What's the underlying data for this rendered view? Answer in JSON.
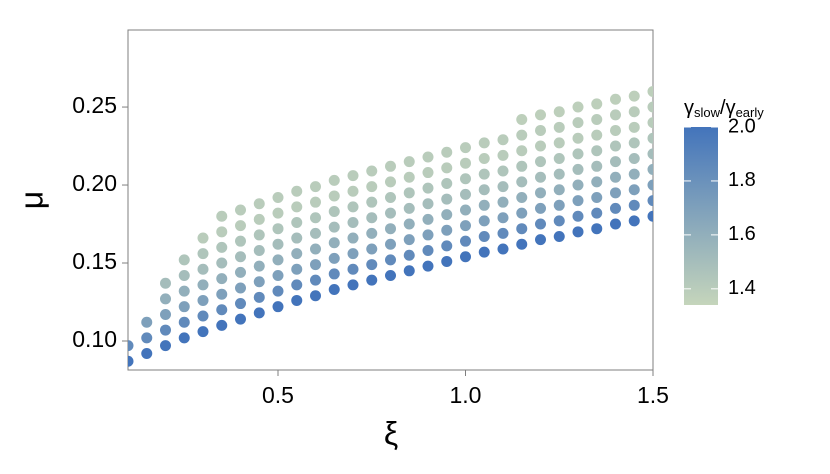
{
  "chart_data": {
    "type": "scatter",
    "xlabel": "ξ",
    "ylabel": "μ",
    "xlim": [
      0.1,
      1.5
    ],
    "ylim": [
      0.0814,
      0.2994
    ],
    "xticks": [
      0.5,
      {
        "value": 1,
        "label": "1.0"
      },
      1.5
    ],
    "yticks": [
      {
        "value": 0.1,
        "label": "0.10"
      },
      {
        "value": 0.15,
        "label": "0.15"
      },
      {
        "value": 0.2,
        "label": "0.20"
      },
      {
        "value": 0.25,
        "label": "0.25"
      }
    ],
    "colorbar": {
      "title": {
        "numerator": "γ",
        "numerator_sub": "slow",
        "sep": "/",
        "denominator": "γ",
        "denominator_sub": "early"
      },
      "clim": [
        1.34,
        2.0
      ],
      "ticks": [
        1.4,
        1.6,
        1.8,
        {
          "value": 2,
          "label": "2.0"
        }
      ],
      "low_color": "#c5d5bb",
      "high_color": "#4374bb"
    },
    "x": [
      0.1,
      0.1,
      0.15,
      0.15,
      0.15,
      0.2,
      0.2,
      0.2,
      0.2,
      0.2,
      0.25,
      0.25,
      0.25,
      0.25,
      0.25,
      0.25,
      0.3,
      0.3,
      0.3,
      0.3,
      0.3,
      0.3,
      0.3,
      0.35,
      0.35,
      0.35,
      0.35,
      0.35,
      0.35,
      0.35,
      0.35,
      0.4,
      0.4,
      0.4,
      0.4,
      0.4,
      0.4,
      0.4,
      0.4,
      0.45,
      0.45,
      0.45,
      0.45,
      0.45,
      0.45,
      0.45,
      0.45,
      0.5,
      0.5,
      0.5,
      0.5,
      0.5,
      0.5,
      0.5,
      0.5,
      0.55,
      0.55,
      0.55,
      0.55,
      0.55,
      0.55,
      0.55,
      0.55,
      0.6,
      0.6,
      0.6,
      0.6,
      0.6,
      0.6,
      0.6,
      0.6,
      0.65,
      0.65,
      0.65,
      0.65,
      0.65,
      0.65,
      0.65,
      0.65,
      0.7,
      0.7,
      0.7,
      0.7,
      0.7,
      0.7,
      0.7,
      0.7,
      0.75,
      0.75,
      0.75,
      0.75,
      0.75,
      0.75,
      0.75,
      0.75,
      0.8,
      0.8,
      0.8,
      0.8,
      0.8,
      0.8,
      0.8,
      0.8,
      0.85,
      0.85,
      0.85,
      0.85,
      0.85,
      0.85,
      0.85,
      0.85,
      0.9,
      0.9,
      0.9,
      0.9,
      0.9,
      0.9,
      0.9,
      0.9,
      0.95,
      0.95,
      0.95,
      0.95,
      0.95,
      0.95,
      0.95,
      0.95,
      1.0,
      1.0,
      1.0,
      1.0,
      1.0,
      1.0,
      1.0,
      1.0,
      1.05,
      1.05,
      1.05,
      1.05,
      1.05,
      1.05,
      1.05,
      1.05,
      1.1,
      1.1,
      1.1,
      1.1,
      1.1,
      1.1,
      1.1,
      1.1,
      1.15,
      1.15,
      1.15,
      1.15,
      1.15,
      1.15,
      1.15,
      1.15,
      1.15,
      1.2,
      1.2,
      1.2,
      1.2,
      1.2,
      1.2,
      1.2,
      1.2,
      1.2,
      1.25,
      1.25,
      1.25,
      1.25,
      1.25,
      1.25,
      1.25,
      1.25,
      1.25,
      1.3,
      1.3,
      1.3,
      1.3,
      1.3,
      1.3,
      1.3,
      1.3,
      1.3,
      1.35,
      1.35,
      1.35,
      1.35,
      1.35,
      1.35,
      1.35,
      1.35,
      1.35,
      1.4,
      1.4,
      1.4,
      1.4,
      1.4,
      1.4,
      1.4,
      1.4,
      1.4,
      1.45,
      1.45,
      1.45,
      1.45,
      1.45,
      1.45,
      1.45,
      1.45,
      1.45,
      1.5,
      1.5,
      1.5,
      1.5,
      1.5,
      1.5,
      1.5,
      1.5,
      1.5
    ],
    "y": [
      0.087,
      0.097,
      0.092,
      0.102,
      0.112,
      0.097,
      0.107,
      0.117,
      0.127,
      0.137,
      0.102,
      0.112,
      0.122,
      0.132,
      0.142,
      0.152,
      0.106,
      0.116,
      0.126,
      0.136,
      0.146,
      0.156,
      0.166,
      0.11,
      0.12,
      0.13,
      0.14,
      0.15,
      0.16,
      0.17,
      0.18,
      0.114,
      0.124,
      0.134,
      0.144,
      0.154,
      0.164,
      0.174,
      0.184,
      0.118,
      0.128,
      0.138,
      0.148,
      0.158,
      0.168,
      0.178,
      0.188,
      0.122,
      0.132,
      0.142,
      0.152,
      0.162,
      0.172,
      0.182,
      0.192,
      0.126,
      0.136,
      0.146,
      0.156,
      0.166,
      0.176,
      0.186,
      0.196,
      0.129,
      0.139,
      0.149,
      0.159,
      0.169,
      0.179,
      0.189,
      0.199,
      0.133,
      0.143,
      0.153,
      0.163,
      0.173,
      0.183,
      0.193,
      0.203,
      0.136,
      0.146,
      0.156,
      0.166,
      0.176,
      0.186,
      0.196,
      0.206,
      0.139,
      0.149,
      0.159,
      0.169,
      0.179,
      0.189,
      0.199,
      0.209,
      0.142,
      0.152,
      0.162,
      0.172,
      0.182,
      0.192,
      0.202,
      0.212,
      0.145,
      0.155,
      0.165,
      0.175,
      0.185,
      0.195,
      0.205,
      0.215,
      0.148,
      0.158,
      0.168,
      0.178,
      0.188,
      0.198,
      0.208,
      0.218,
      0.151,
      0.161,
      0.171,
      0.181,
      0.191,
      0.201,
      0.211,
      0.221,
      0.154,
      0.164,
      0.174,
      0.184,
      0.194,
      0.204,
      0.214,
      0.224,
      0.157,
      0.167,
      0.177,
      0.187,
      0.197,
      0.207,
      0.217,
      0.227,
      0.159,
      0.169,
      0.179,
      0.189,
      0.199,
      0.209,
      0.219,
      0.229,
      0.162,
      0.172,
      0.182,
      0.192,
      0.202,
      0.212,
      0.222,
      0.232,
      0.242,
      0.165,
      0.175,
      0.185,
      0.195,
      0.205,
      0.215,
      0.225,
      0.235,
      0.245,
      0.167,
      0.177,
      0.187,
      0.197,
      0.207,
      0.217,
      0.227,
      0.237,
      0.247,
      0.17,
      0.18,
      0.19,
      0.2,
      0.21,
      0.22,
      0.23,
      0.24,
      0.25,
      0.172,
      0.182,
      0.192,
      0.202,
      0.212,
      0.222,
      0.232,
      0.242,
      0.252,
      0.175,
      0.185,
      0.195,
      0.205,
      0.215,
      0.225,
      0.235,
      0.245,
      0.255,
      0.177,
      0.187,
      0.197,
      0.207,
      0.217,
      0.227,
      0.237,
      0.247,
      0.257,
      0.18,
      0.19,
      0.2,
      0.21,
      0.22,
      0.23,
      0.24,
      0.25,
      0.26
    ],
    "color_values": [
      2.0,
      1.85,
      2.0,
      1.85,
      1.7,
      2.0,
      1.85,
      1.7,
      1.6,
      1.5,
      2.0,
      1.85,
      1.7,
      1.6,
      1.5,
      1.45,
      2.0,
      1.85,
      1.7,
      1.6,
      1.5,
      1.45,
      1.4,
      2.0,
      1.85,
      1.7,
      1.6,
      1.5,
      1.45,
      1.4,
      1.4,
      2.0,
      1.85,
      1.7,
      1.6,
      1.5,
      1.45,
      1.4,
      1.4,
      2.0,
      1.85,
      1.7,
      1.6,
      1.5,
      1.45,
      1.4,
      1.4,
      2.0,
      1.85,
      1.7,
      1.6,
      1.5,
      1.45,
      1.4,
      1.4,
      2.0,
      1.85,
      1.7,
      1.6,
      1.5,
      1.45,
      1.4,
      1.4,
      2.0,
      1.85,
      1.7,
      1.6,
      1.5,
      1.45,
      1.4,
      1.4,
      2.0,
      1.85,
      1.7,
      1.6,
      1.5,
      1.45,
      1.4,
      1.4,
      2.0,
      1.85,
      1.7,
      1.6,
      1.5,
      1.45,
      1.4,
      1.4,
      2.0,
      1.85,
      1.7,
      1.6,
      1.5,
      1.45,
      1.4,
      1.4,
      2.0,
      1.85,
      1.7,
      1.6,
      1.5,
      1.45,
      1.4,
      1.4,
      2.0,
      1.85,
      1.7,
      1.6,
      1.5,
      1.45,
      1.4,
      1.4,
      2.0,
      1.85,
      1.7,
      1.6,
      1.5,
      1.45,
      1.4,
      1.4,
      2.0,
      1.85,
      1.7,
      1.6,
      1.5,
      1.45,
      1.4,
      1.4,
      2.0,
      1.85,
      1.7,
      1.6,
      1.5,
      1.45,
      1.4,
      1.4,
      2.0,
      1.85,
      1.7,
      1.6,
      1.5,
      1.45,
      1.4,
      1.4,
      2.0,
      1.85,
      1.7,
      1.6,
      1.5,
      1.45,
      1.4,
      1.4,
      2.0,
      1.85,
      1.7,
      1.6,
      1.5,
      1.45,
      1.4,
      1.4,
      1.38,
      2.0,
      1.85,
      1.7,
      1.6,
      1.5,
      1.45,
      1.4,
      1.4,
      1.38,
      2.0,
      1.85,
      1.7,
      1.6,
      1.5,
      1.45,
      1.4,
      1.4,
      1.38,
      2.0,
      1.85,
      1.7,
      1.6,
      1.5,
      1.45,
      1.4,
      1.4,
      1.38,
      2.0,
      1.85,
      1.7,
      1.6,
      1.5,
      1.45,
      1.4,
      1.4,
      1.38,
      2.0,
      1.85,
      1.7,
      1.6,
      1.5,
      1.45,
      1.4,
      1.4,
      1.38,
      2.0,
      1.85,
      1.7,
      1.6,
      1.5,
      1.45,
      1.4,
      1.4,
      1.38,
      2.0,
      1.85,
      1.7,
      1.6,
      1.5,
      1.45,
      1.4,
      1.4,
      1.38
    ]
  }
}
